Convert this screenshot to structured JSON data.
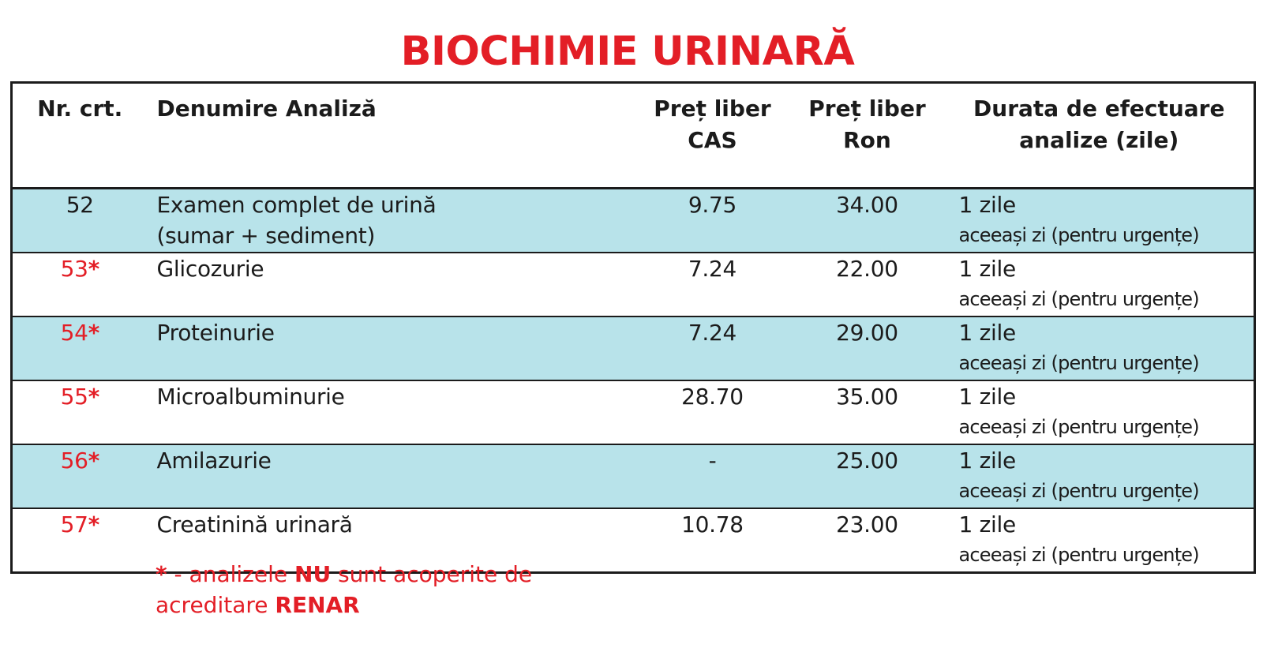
{
  "title": "BIOCHIMIE URINARĂ",
  "table": {
    "headers": {
      "nr": "Nr. crt.",
      "name": "Denumire Analiză",
      "cas_line1": "Preț liber",
      "cas_line2": "CAS",
      "ron_line1": "Preț liber",
      "ron_line2": "Ron",
      "dur_line1": "Durata de efectuare",
      "dur_line2": "analize (zile)"
    },
    "rows": [
      {
        "nr": "52",
        "star": "",
        "name_line1": "Examen complet de urină",
        "name_line2": "(sumar + sediment)",
        "cas": "9.75",
        "ron": "34.00",
        "dur_main": "1 zile",
        "dur_sub": "aceeași zi (pentru urgențe)"
      },
      {
        "nr": "53",
        "star": "*",
        "name_line1": "Glicozurie",
        "name_line2": "",
        "cas": "7.24",
        "ron": "22.00",
        "dur_main": "1 zile",
        "dur_sub": "aceeași zi (pentru urgențe)"
      },
      {
        "nr": "54",
        "star": "*",
        "name_line1": "Proteinurie",
        "name_line2": "",
        "cas": "7.24",
        "ron": "29.00",
        "dur_main": "1 zile",
        "dur_sub": "aceeași zi (pentru urgențe)"
      },
      {
        "nr": "55",
        "star": "*",
        "name_line1": "Microalbuminurie",
        "name_line2": "",
        "cas": "28.70",
        "ron": "35.00",
        "dur_main": "1 zile",
        "dur_sub": "aceeași zi (pentru urgențe)"
      },
      {
        "nr": "56",
        "star": "*",
        "name_line1": "Amilazurie",
        "name_line2": "",
        "cas": "-",
        "ron": "25.00",
        "dur_main": "1 zile",
        "dur_sub": "aceeași zi (pentru urgențe)"
      },
      {
        "nr": "57",
        "star": "*",
        "name_line1": "Creatinină urinară",
        "name_line2": "",
        "cas": "10.78",
        "ron": "23.00",
        "dur_main": "1 zile",
        "dur_sub": "aceeași zi (pentru urgențe)"
      }
    ]
  },
  "footnote": {
    "star": "*",
    "part1": " - analizele ",
    "nu": "NU",
    "part2": " sunt acoperite de",
    "part3": "acreditare ",
    "renar": "RENAR"
  },
  "colors": {
    "accent_red": "#e31e26",
    "row_shade": "#b8e3ea",
    "text": "#1b1b1b"
  }
}
